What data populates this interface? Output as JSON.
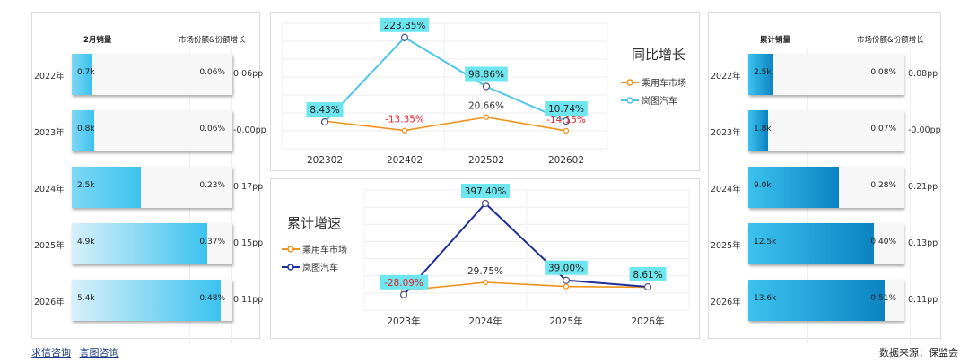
{
  "left_panel": {
    "header_left": "2月销量",
    "header_right": "市场份额&份额增长",
    "rows": [
      {
        "year": "2022年",
        "value_label": "0.7k",
        "value": 0.7,
        "share": "0.06%",
        "growth": "0.06pp"
      },
      {
        "year": "2023年",
        "value_label": "0.8k",
        "value": 0.8,
        "share": "0.06%",
        "growth": "-0.00pp"
      },
      {
        "year": "2024年",
        "value_label": "2.5k",
        "value": 2.5,
        "share": "0.23%",
        "growth": "0.17pp"
      },
      {
        "year": "2025年",
        "value_label": "4.9k",
        "value": 4.9,
        "share": "0.37%",
        "growth": "0.15pp"
      },
      {
        "year": "2026年",
        "value_label": "5.4k",
        "value": 5.4,
        "share": "0.48%",
        "growth": "0.11pp"
      }
    ],
    "max": 5.4
  },
  "right_panel": {
    "header_left": "累计销量",
    "header_right": "市场份额&份额增长",
    "rows": [
      {
        "year": "2022年",
        "value_label": "2.5k",
        "value": 2.5,
        "share": "0.08%",
        "growth": "0.08pp"
      },
      {
        "year": "2023年",
        "value_label": "1.8k",
        "value": 1.8,
        "share": "0.07%",
        "growth": "-0.00pp"
      },
      {
        "year": "2024年",
        "value_label": "9.0k",
        "value": 9.0,
        "share": "0.28%",
        "growth": "0.21pp"
      },
      {
        "year": "2025年",
        "value_label": "12.5k",
        "value": 12.5,
        "share": "0.40%",
        "growth": "0.13pp"
      },
      {
        "year": "2026年",
        "value_label": "13.6k",
        "value": 13.6,
        "share": "0.51%",
        "growth": "0.11pp"
      }
    ],
    "max": 13.6
  },
  "colors": {
    "market": "#f0941e",
    "brand_top": "#4ec6ea",
    "brand_bottom": "#1f2f9a",
    "label_box": "#6ee6f0",
    "negative": "#e8222a",
    "bar_light": "#d8f0fa",
    "bar_mid": "#3cc2ee",
    "bar_dark": "#0b83c2"
  },
  "chart_data": [
    {
      "type": "line",
      "title": "同比增长",
      "categories": [
        "202302",
        "202402",
        "202502",
        "202602"
      ],
      "series": [
        {
          "name": "乘用车市场",
          "values": [
            10.5,
            -13.35,
            20.66,
            -14.15
          ],
          "labels": [
            "",
            "-13.35%",
            "20.66%",
            "-14.15%"
          ]
        },
        {
          "name": "岚图汽车",
          "values": [
            8.43,
            223.85,
            98.86,
            10.74
          ],
          "labels": [
            "8.43%",
            "223.85%",
            "98.86%",
            "10.74%"
          ]
        }
      ],
      "ylim": [
        -60,
        260
      ]
    },
    {
      "type": "line",
      "title": "累计增速",
      "categories": [
        "2023年",
        "2024年",
        "2025年",
        "2026年"
      ],
      "series": [
        {
          "name": "乘用车市场",
          "values": [
            -8.5,
            29.75,
            10.3,
            6.8
          ],
          "labels": [
            "",
            "29.75%",
            "",
            ""
          ]
        },
        {
          "name": "岚图汽车",
          "values": [
            -28.09,
            397.4,
            39.0,
            8.61
          ],
          "labels": [
            "-28.09%",
            "397.40%",
            "39.00%",
            "8.61%"
          ]
        }
      ],
      "ylim": [
        -100,
        460
      ]
    }
  ],
  "footer": {
    "link1": "求信咨询",
    "link2": "言图咨询",
    "source": "数据来源：保监会"
  }
}
